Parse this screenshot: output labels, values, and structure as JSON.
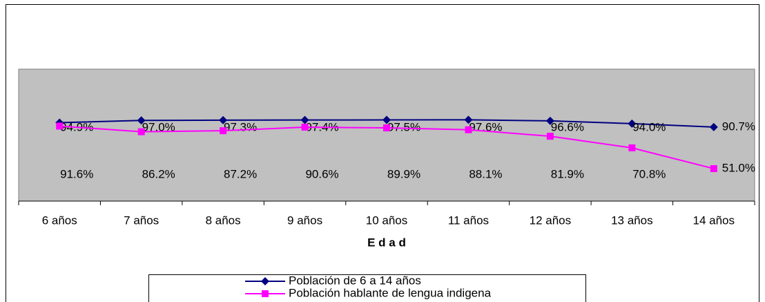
{
  "chart_data": {
    "type": "line",
    "x_label": "E d a d",
    "categories": [
      "6 años",
      "7 años",
      "8 años",
      "9 años",
      "10 años",
      "11 años",
      "12 años",
      "13 años",
      "14 años"
    ],
    "series": [
      {
        "name": "Población de 6 a 14 años",
        "color": "#000080",
        "marker": "diamond",
        "values": [
          94.9,
          97.0,
          97.3,
          97.4,
          97.5,
          97.6,
          96.6,
          94.0,
          90.7
        ],
        "value_labels": [
          "94.9%",
          "97.0%",
          "97.3%",
          "97.4%",
          "97.5%",
          "97.6%",
          "96.6%",
          "94.0%",
          "90.7%"
        ]
      },
      {
        "name": "Población hablante de lengua indigena",
        "color": "#ff00ff",
        "marker": "square",
        "values": [
          91.6,
          86.2,
          87.2,
          90.6,
          89.9,
          88.1,
          81.9,
          70.8,
          51.0
        ],
        "value_labels": [
          "91.6%",
          "86.2%",
          "87.2%",
          "90.6%",
          "89.9%",
          "88.1%",
          "81.9%",
          "70.8%",
          "51.0%"
        ]
      }
    ],
    "ylim": [
      20,
      146
    ]
  }
}
